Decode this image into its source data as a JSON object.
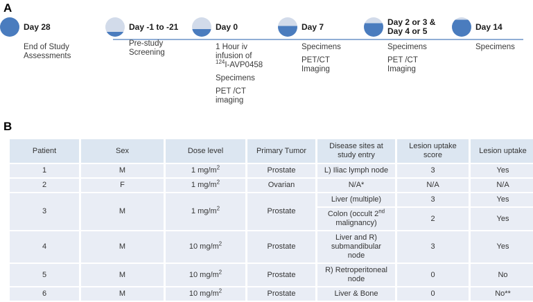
{
  "labels": {
    "section_a": "A",
    "section_b": "B"
  },
  "colors": {
    "circle_fill_blue": "#4a7cbe",
    "circle_light": "#d2dbea",
    "timeline_line": "#90aed6",
    "table_header_bg": "#dce6f1",
    "table_row_bg": "#e9edf5"
  },
  "timeline": {
    "events": [
      {
        "day": "Day -1 to -21",
        "fill_pct": 25,
        "details": [
          "Pre-study\nScreening"
        ]
      },
      {
        "day": "Day 0",
        "fill_pct": 40,
        "details": [
          "1 Hour iv\ninfusion of\n^{124}I-AVP0458",
          "Specimens",
          "PET /CT\nimaging"
        ]
      },
      {
        "day": "Day 7",
        "fill_pct": 55,
        "details": [
          "Specimens",
          "PET/CT\nImaging"
        ]
      },
      {
        "day": "Day 2 or 3 &\nDay 4 or 5",
        "fill_pct": 70,
        "details": [
          "Specimens",
          "PET /CT\nImaging"
        ]
      },
      {
        "day": "Day 14",
        "fill_pct": 88,
        "details": [
          "Specimens"
        ]
      },
      {
        "day": "Day 28",
        "fill_pct": 100,
        "details": [
          "End of Study\nAssessments"
        ]
      }
    ]
  },
  "table": {
    "headers": [
      "Patient",
      "Sex",
      "Dose level",
      "Primary Tumor",
      "Disease sites at\nstudy entry",
      "Lesion uptake\nscore",
      "Lesion uptake"
    ],
    "rows": [
      {
        "cells": [
          {
            "t": "1"
          },
          {
            "t": "M"
          },
          {
            "t": "1 mg/m^{2}"
          },
          {
            "t": "Prostate"
          },
          {
            "t": "L) Iliac lymph node"
          },
          {
            "t": "3"
          },
          {
            "t": "Yes"
          }
        ]
      },
      {
        "cells": [
          {
            "t": "2"
          },
          {
            "t": "F"
          },
          {
            "t": "1 mg/m^{2}"
          },
          {
            "t": "Ovarian"
          },
          {
            "t": "N/A*"
          },
          {
            "t": "N/A"
          },
          {
            "t": "N/A"
          }
        ]
      },
      {
        "cells": [
          {
            "t": "3",
            "rs": 2
          },
          {
            "t": "M",
            "rs": 2
          },
          {
            "t": "1 mg/m^{2}",
            "rs": 2
          },
          {
            "t": "Prostate",
            "rs": 2
          },
          {
            "t": "Liver (multiple)"
          },
          {
            "t": "3"
          },
          {
            "t": "Yes"
          }
        ]
      },
      {
        "cells": [
          {
            "t": "Colon (occult 2^{nd}\nmalignancy)"
          },
          {
            "t": "2"
          },
          {
            "t": "Yes"
          }
        ]
      },
      {
        "cells": [
          {
            "t": "4"
          },
          {
            "t": "M"
          },
          {
            "t": "10 mg/m^{2}"
          },
          {
            "t": "Prostate"
          },
          {
            "t": "Liver and R)\nsubmandibular\nnode"
          },
          {
            "t": "3"
          },
          {
            "t": "Yes"
          }
        ]
      },
      {
        "cells": [
          {
            "t": "5"
          },
          {
            "t": "M"
          },
          {
            "t": "10 mg/m^{2}"
          },
          {
            "t": "Prostate"
          },
          {
            "t": "R) Retroperitoneal\nnode"
          },
          {
            "t": "0"
          },
          {
            "t": "No"
          }
        ]
      },
      {
        "cells": [
          {
            "t": "6"
          },
          {
            "t": "M"
          },
          {
            "t": "10 mg/m^{2}"
          },
          {
            "t": "Prostate"
          },
          {
            "t": "Liver & Bone"
          },
          {
            "t": "0"
          },
          {
            "t": "No**"
          }
        ]
      }
    ]
  }
}
